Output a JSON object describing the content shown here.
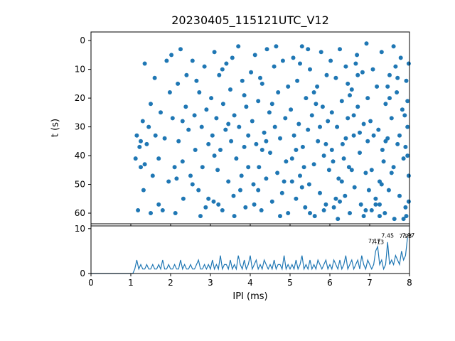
{
  "title": "20230405_115121UTC_V12",
  "colors": {
    "series": "#1f77b4",
    "axis": "#000000",
    "background": "#ffffff"
  },
  "chart_data": [
    {
      "type": "scatter",
      "title": "20230405_115121UTC_V12",
      "xlabel": "IPI (ms)",
      "ylabel": "t (s)",
      "xlim": [
        0,
        8
      ],
      "ylim": [
        63.7,
        -3
      ],
      "y_inverted": true,
      "grid": false,
      "x_ticks": [
        0,
        1,
        2,
        3,
        4,
        5,
        6,
        7,
        8
      ],
      "y_ticks": [
        0,
        10,
        20,
        30,
        40,
        50,
        60
      ],
      "points": [
        [
          1.12,
          41
        ],
        [
          1.15,
          33
        ],
        [
          1.18,
          59
        ],
        [
          1.22,
          37
        ],
        [
          1.25,
          44
        ],
        [
          1.3,
          28
        ],
        [
          1.32,
          52
        ],
        [
          1.35,
          8
        ],
        [
          1.4,
          36
        ],
        [
          1.45,
          30
        ],
        [
          1.5,
          22
        ],
        [
          1.55,
          47
        ],
        [
          1.6,
          13
        ],
        [
          1.62,
          33
        ],
        [
          1.7,
          41
        ],
        [
          1.75,
          25
        ],
        [
          1.8,
          59
        ],
        [
          1.85,
          34
        ],
        [
          1.9,
          7
        ],
        [
          1.95,
          49
        ],
        [
          1.98,
          18
        ],
        [
          1.5,
          60
        ],
        [
          1.35,
          43
        ],
        [
          1.7,
          57
        ],
        [
          1.25,
          35
        ],
        [
          2.02,
          5
        ],
        [
          2.05,
          27
        ],
        [
          2.1,
          44
        ],
        [
          2.12,
          60
        ],
        [
          2.18,
          15
        ],
        [
          2.2,
          35
        ],
        [
          2.25,
          3
        ],
        [
          2.3,
          42
        ],
        [
          2.32,
          55
        ],
        [
          2.38,
          23
        ],
        [
          2.4,
          12
        ],
        [
          2.45,
          31
        ],
        [
          2.5,
          47
        ],
        [
          2.55,
          7
        ],
        [
          2.6,
          26
        ],
        [
          2.62,
          38
        ],
        [
          2.7,
          52
        ],
        [
          2.72,
          18
        ],
        [
          2.78,
          30
        ],
        [
          2.8,
          44
        ],
        [
          2.85,
          9
        ],
        [
          2.88,
          58
        ],
        [
          2.9,
          24
        ],
        [
          2.95,
          36
        ],
        [
          2.3,
          28
        ],
        [
          2.55,
          50
        ],
        [
          2.75,
          61
        ],
        [
          2.15,
          48
        ],
        [
          2.65,
          14
        ],
        [
          2.95,
          55
        ],
        [
          3.02,
          20
        ],
        [
          3.05,
          33
        ],
        [
          3.08,
          56
        ],
        [
          3.1,
          4
        ],
        [
          3.15,
          27
        ],
        [
          3.18,
          45
        ],
        [
          3.22,
          12
        ],
        [
          3.25,
          38
        ],
        [
          3.3,
          59
        ],
        [
          3.32,
          22
        ],
        [
          3.38,
          31
        ],
        [
          3.4,
          8
        ],
        [
          3.45,
          49
        ],
        [
          3.5,
          17
        ],
        [
          3.52,
          35
        ],
        [
          3.58,
          54
        ],
        [
          3.6,
          26
        ],
        [
          3.65,
          41
        ],
        [
          3.7,
          2
        ],
        [
          3.72,
          30
        ],
        [
          3.78,
          47
        ],
        [
          3.8,
          14
        ],
        [
          3.85,
          37
        ],
        [
          3.88,
          58
        ],
        [
          3.9,
          23
        ],
        [
          3.95,
          44
        ],
        [
          3.3,
          10
        ],
        [
          3.6,
          61
        ],
        [
          3.45,
          29
        ],
        [
          3.75,
          52
        ],
        [
          3.2,
          57
        ],
        [
          3.55,
          6
        ],
        [
          3.85,
          19
        ],
        [
          3.1,
          40
        ],
        [
          3.95,
          33
        ],
        [
          4.02,
          11
        ],
        [
          4.05,
          28
        ],
        [
          4.08,
          50
        ],
        [
          4.12,
          5
        ],
        [
          4.15,
          36
        ],
        [
          4.2,
          21
        ],
        [
          4.22,
          44
        ],
        [
          4.28,
          59
        ],
        [
          4.3,
          15
        ],
        [
          4.35,
          32
        ],
        [
          4.4,
          48
        ],
        [
          4.42,
          3
        ],
        [
          4.48,
          25
        ],
        [
          4.5,
          39
        ],
        [
          4.55,
          56
        ],
        [
          4.6,
          9
        ],
        [
          4.62,
          30
        ],
        [
          4.68,
          46
        ],
        [
          4.7,
          18
        ],
        [
          4.75,
          34
        ],
        [
          4.8,
          53
        ],
        [
          4.82,
          7
        ],
        [
          4.88,
          27
        ],
        [
          4.9,
          42
        ],
        [
          4.95,
          60
        ],
        [
          4.25,
          13
        ],
        [
          4.55,
          22
        ],
        [
          4.75,
          61
        ],
        [
          4.1,
          57
        ],
        [
          4.4,
          35
        ],
        [
          4.65,
          2
        ],
        [
          4.85,
          49
        ],
        [
          4.3,
          38
        ],
        [
          4.95,
          16
        ],
        [
          4.2,
          52
        ],
        [
          5.02,
          24
        ],
        [
          5.05,
          41
        ],
        [
          5.08,
          6
        ],
        [
          5.1,
          33
        ],
        [
          5.15,
          55
        ],
        [
          5.18,
          14
        ],
        [
          5.22,
          29
        ],
        [
          5.25,
          47
        ],
        [
          5.3,
          2
        ],
        [
          5.32,
          37
        ],
        [
          5.38,
          58
        ],
        [
          5.4,
          20
        ],
        [
          5.45,
          31
        ],
        [
          5.48,
          50
        ],
        [
          5.5,
          10
        ],
        [
          5.55,
          26
        ],
        [
          5.6,
          43
        ],
        [
          5.62,
          61
        ],
        [
          5.68,
          16
        ],
        [
          5.7,
          35
        ],
        [
          5.75,
          53
        ],
        [
          5.78,
          4
        ],
        [
          5.82,
          23
        ],
        [
          5.85,
          40
        ],
        [
          5.9,
          57
        ],
        [
          5.92,
          12
        ],
        [
          5.95,
          28
        ],
        [
          5.98,
          45
        ],
        [
          5.25,
          8
        ],
        [
          5.5,
          60
        ],
        [
          5.35,
          44
        ],
        [
          5.65,
          22
        ],
        [
          5.15,
          38
        ],
        [
          5.85,
          59
        ],
        [
          5.45,
          3
        ],
        [
          5.75,
          30
        ],
        [
          5.3,
          51
        ],
        [
          5.6,
          18
        ],
        [
          5.9,
          36
        ],
        [
          5.05,
          49
        ],
        [
          6.02,
          7
        ],
        [
          6.05,
          25
        ],
        [
          6.08,
          42
        ],
        [
          6.1,
          58
        ],
        [
          6.15,
          13
        ],
        [
          6.18,
          30
        ],
        [
          6.22,
          48
        ],
        [
          6.25,
          3
        ],
        [
          6.3,
          21
        ],
        [
          6.32,
          36
        ],
        [
          6.38,
          54
        ],
        [
          6.4,
          9
        ],
        [
          6.45,
          27
        ],
        [
          6.48,
          44
        ],
        [
          6.5,
          60
        ],
        [
          6.55,
          17
        ],
        [
          6.6,
          33
        ],
        [
          6.62,
          51
        ],
        [
          6.68,
          5
        ],
        [
          6.7,
          23
        ],
        [
          6.75,
          39
        ],
        [
          6.78,
          57
        ],
        [
          6.82,
          11
        ],
        [
          6.85,
          29
        ],
        [
          6.9,
          46
        ],
        [
          6.92,
          1
        ],
        [
          6.95,
          35
        ],
        [
          6.98,
          52
        ],
        [
          6.2,
          62
        ],
        [
          6.5,
          19
        ],
        [
          6.35,
          41
        ],
        [
          6.65,
          8
        ],
        [
          6.15,
          55
        ],
        [
          6.85,
          61
        ],
        [
          6.45,
          15
        ],
        [
          6.75,
          32
        ],
        [
          6.3,
          49
        ],
        [
          6.6,
          26
        ],
        [
          6.9,
          59
        ],
        [
          6.05,
          38
        ],
        [
          6.55,
          45
        ],
        [
          6.25,
          56
        ],
        [
          6.7,
          12
        ],
        [
          6.4,
          34
        ],
        [
          6.95,
          20
        ],
        [
          7.02,
          28
        ],
        [
          7.05,
          45
        ],
        [
          7.08,
          10
        ],
        [
          7.1,
          33
        ],
        [
          7.15,
          57
        ],
        [
          7.18,
          16
        ],
        [
          7.22,
          31
        ],
        [
          7.25,
          49
        ],
        [
          7.3,
          4
        ],
        [
          7.32,
          38
        ],
        [
          7.38,
          60
        ],
        [
          7.4,
          22
        ],
        [
          7.45,
          34
        ],
        [
          7.48,
          52
        ],
        [
          7.5,
          12
        ],
        [
          7.55,
          27
        ],
        [
          7.6,
          44
        ],
        [
          7.62,
          62
        ],
        [
          7.68,
          18
        ],
        [
          7.7,
          36
        ],
        [
          7.75,
          54
        ],
        [
          7.78,
          6
        ],
        [
          7.82,
          24
        ],
        [
          7.85,
          41
        ],
        [
          7.9,
          58
        ],
        [
          7.92,
          14
        ],
        [
          7.95,
          30
        ],
        [
          7.98,
          47
        ],
        [
          7.25,
          61
        ],
        [
          7.5,
          20
        ],
        [
          7.35,
          42
        ],
        [
          7.65,
          9
        ],
        [
          7.15,
          55
        ],
        [
          7.85,
          62
        ],
        [
          7.45,
          16
        ],
        [
          7.75,
          33
        ],
        [
          7.3,
          50
        ],
        [
          7.6,
          2
        ],
        [
          7.9,
          37
        ],
        [
          7.05,
          59
        ],
        [
          7.55,
          46
        ],
        [
          7.25,
          57
        ],
        [
          7.7,
          13
        ],
        [
          7.4,
          35
        ],
        [
          7.95,
          21
        ],
        [
          7.98,
          8
        ],
        [
          7.98,
          56
        ],
        [
          7.95,
          40
        ],
        [
          7.92,
          61
        ],
        [
          7.88,
          26
        ]
      ]
    },
    {
      "type": "line",
      "xlabel": "IPI (ms)",
      "ylabel": "",
      "xlim": [
        0,
        8
      ],
      "ylim": [
        0,
        10.6
      ],
      "x_ticks": [
        0,
        1,
        2,
        3,
        4,
        5,
        6,
        7,
        8
      ],
      "y_ticks": [
        0,
        10
      ],
      "x_start": 0,
      "bin_width": 0.05,
      "values": [
        0,
        0,
        0,
        0,
        0,
        0,
        0,
        0,
        0,
        0,
        0,
        0,
        0,
        0,
        0,
        0,
        0,
        0,
        0,
        0,
        0,
        0,
        1,
        3,
        1,
        2,
        1,
        1,
        2,
        1,
        1,
        2,
        1,
        1,
        2,
        1,
        3,
        1,
        1,
        2,
        1,
        1,
        2,
        1,
        1,
        3,
        1,
        2,
        1,
        1,
        2,
        1,
        1,
        2,
        3,
        1,
        1,
        2,
        1,
        2,
        1,
        3,
        1,
        2,
        1,
        4,
        1,
        2,
        2,
        1,
        3,
        1,
        2,
        1,
        4,
        2,
        1,
        3,
        1,
        2,
        4,
        1,
        2,
        3,
        1,
        2,
        1,
        3,
        2,
        1,
        2,
        1,
        3,
        1,
        2,
        2,
        1,
        4,
        1,
        2,
        1,
        2,
        1,
        3,
        1,
        2,
        4,
        1,
        2,
        1,
        3,
        1,
        2,
        1,
        3,
        2,
        1,
        2,
        3,
        1,
        2,
        1,
        3,
        2,
        1,
        3,
        1,
        2,
        4,
        1,
        2,
        3,
        1,
        2,
        3,
        1,
        4,
        2,
        1,
        3,
        2,
        1,
        2,
        5,
        6,
        2,
        3,
        1,
        2,
        7,
        2,
        3,
        2,
        4,
        3,
        2,
        5,
        3,
        4,
        8
      ],
      "annotations": [
        {
          "x": 7.45,
          "y": 8.0,
          "text": "7.45"
        },
        {
          "x": 7.12,
          "y": 6.8,
          "text": "7.17"
        },
        {
          "x": 7.2,
          "y": 6.6,
          "text": "7.13"
        },
        {
          "x": 7.9,
          "y": 7.9,
          "text": "7.93"
        },
        {
          "x": 7.97,
          "y": 8.1,
          "text": "7.97"
        }
      ]
    }
  ]
}
